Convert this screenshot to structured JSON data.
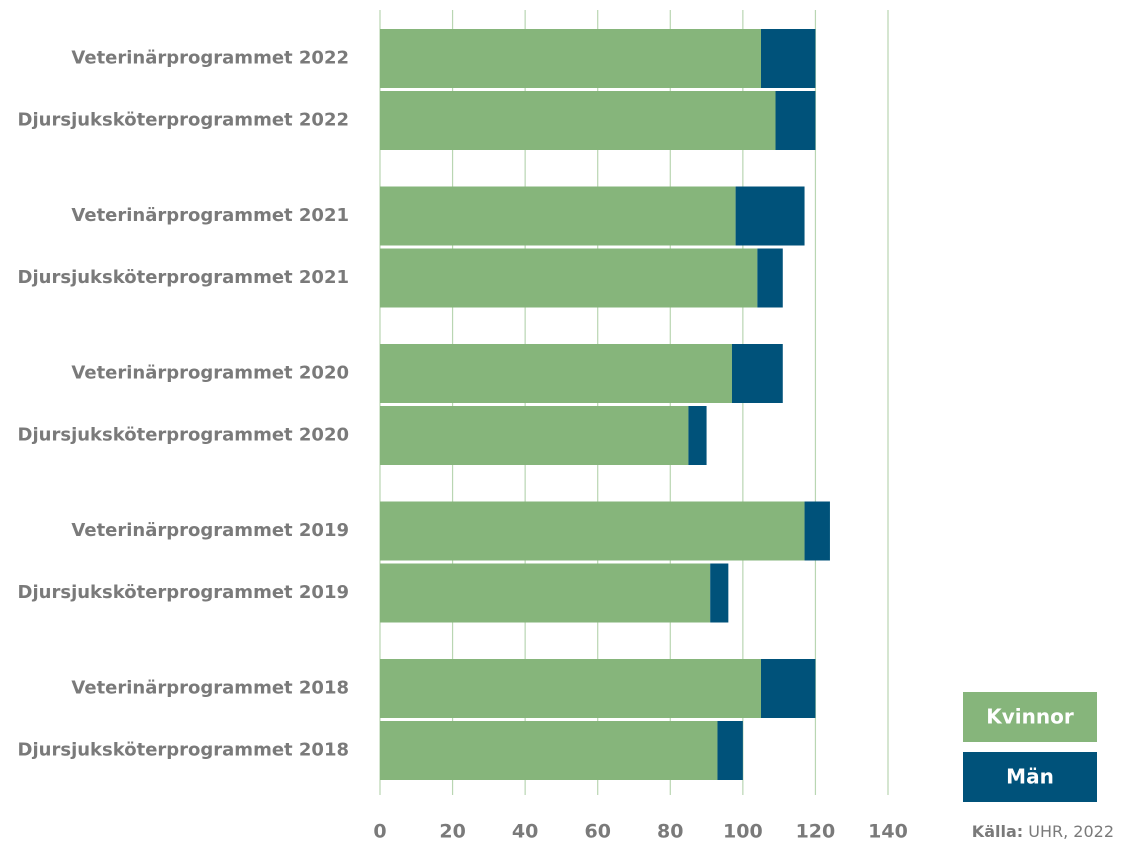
{
  "chart_data": {
    "type": "stacked_barh",
    "categories": [
      "Veterinärprogrammet 2022",
      "Djursjuksköterprogrammet 2022",
      "Veterinärprogrammet 2021",
      "Djursjuksköterprogrammet 2021",
      "Veterinärprogrammet 2020",
      "Djursjuksköterprogrammet 2020",
      "Veterinärprogrammet 2019",
      "Djursjuksköterprogrammet 2019",
      "Veterinärprogrammet 2018",
      "Djursjuksköterprogrammet 2018"
    ],
    "series": [
      {
        "name": "Kvinnor",
        "color": "#86b57b",
        "values": [
          105,
          109,
          98,
          104,
          97,
          85,
          117,
          91,
          105,
          93
        ]
      },
      {
        "name": "Män",
        "color": "#00527a",
        "values": [
          15,
          11,
          19,
          7,
          14,
          5,
          7,
          5,
          15,
          7
        ]
      }
    ],
    "xlim": [
      0,
      140
    ],
    "xticks": [
      0,
      20,
      40,
      60,
      80,
      100,
      120,
      140
    ],
    "grid": true,
    "source": {
      "label": "Källa:",
      "text": "UHR, 2022"
    }
  }
}
